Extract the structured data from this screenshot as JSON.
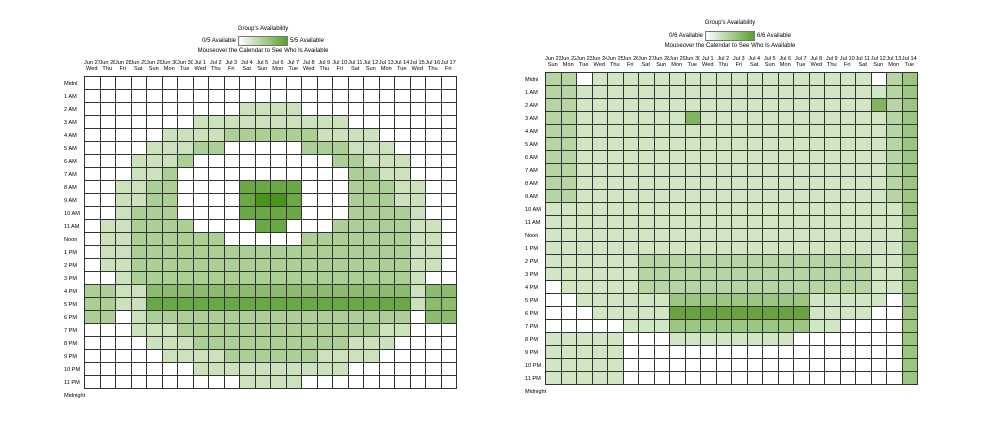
{
  "calendars": [
    {
      "title": "Group's Availability",
      "legend_min": "0/5 Available",
      "legend_max": "5/5 Available",
      "instructions": "Mouseover the Calendar to See Who Is Available",
      "dates": [
        "Jun 27",
        "Jun 28",
        "Jun 29",
        "Jun 30",
        "Jul 1",
        "Jul 2",
        "Jul 3",
        "Jul 4",
        "Jul 5",
        "Jul 6",
        "Jul 7",
        "Jul 8",
        "Jul 9",
        "Jul 10",
        "Jul 11",
        "Jul 12",
        "Jul 13",
        "Jul 14",
        "Jul 15",
        "Jul 16",
        "Jul 17",
        "Jun 28",
        "Jun 29",
        "Jun 30"
      ],
      "dates_shown": [
        "Jun 27",
        "Jun 28",
        "Jun 28",
        "Jun 29",
        "Jun 29",
        "Jun 30",
        "Jun 30",
        "Jul 1",
        "Jul 2",
        "Jul 3",
        "Jul 4",
        "Jul 5",
        "Jul 6",
        "Jul 7",
        "Jul 8",
        "Jul 9",
        "Jul 10",
        "Jul 11",
        "Jul 12",
        "Jul 13",
        "Jul 14",
        "Jul 15",
        "Jul 16",
        "Jul 17"
      ],
      "days": [
        "Wed",
        "Thu",
        "Fri",
        "Sat",
        "Sun",
        "Mon",
        "Tue",
        "Wed",
        "Thu",
        "Fri",
        "Sat",
        "Sun",
        "Mon",
        "Tue",
        "Wed",
        "Thu",
        "Fri",
        "Sat",
        "Sun",
        "Mon",
        "Tue",
        "Wed",
        "Thu",
        "Fri"
      ],
      "hours": [
        "Midni",
        "1 AM",
        "2 AM",
        "3 AM",
        "4 AM",
        "5 AM",
        "6 AM",
        "7 AM",
        "8 AM",
        "9 AM",
        "10 AM",
        "11 AM",
        "Noon",
        "1 PM",
        "2 PM",
        "3 PM",
        "4 PM",
        "5 PM",
        "6 PM",
        "7 PM",
        "8 PM",
        "9 PM",
        "10 PM",
        "11 PM",
        "Midnight"
      ],
      "max_available": 5,
      "accent": "#5aa02c"
    },
    {
      "title": "Group's Availability",
      "legend_min": "0/6 Available",
      "legend_max": "6/6 Available",
      "instructions": "Mouseover the Calendar to See Who Is Available",
      "dates_shown": [
        "Jun 23",
        "Jun 22",
        "Jun 23",
        "Jun 24",
        "Jun 25",
        "Jun 26",
        "Jun 27",
        "Jun 28",
        "Jun 29",
        "Jun 30",
        "Jul 1",
        "Jul 2",
        "Jul 3",
        "Jul 4",
        "Jul 5",
        "Jul 6",
        "Jul 7",
        "Jul 8",
        "Jul 9",
        "Jul 10",
        "Jul 11",
        "Jul 12",
        "Jul 13",
        "Jul 14"
      ],
      "days": [
        "Sun",
        "Mon",
        "Tue",
        "Wed",
        "Thu",
        "Fri",
        "Sat",
        "Sun",
        "Mon",
        "Tue",
        "Wed",
        "Thu",
        "Fri",
        "Sat",
        "Sun",
        "Mon",
        "Tue",
        "Wed",
        "Thu",
        "Fri",
        "Sat",
        "Sun",
        "Mon",
        "Tue"
      ],
      "hours": [
        "Midni",
        "1 AM",
        "2 AM",
        "3 AM",
        "4 AM",
        "5 AM",
        "6 AM",
        "7 AM",
        "8 AM",
        "9 AM",
        "10 AM",
        "11 AM",
        "Noon",
        "1 PM",
        "2 PM",
        "3 PM",
        "4 PM",
        "5 PM",
        "6 PM",
        "7 PM",
        "8 PM",
        "9 PM",
        "10 PM",
        "11 PM",
        "Midnight"
      ],
      "max_available": 6,
      "accent": "#5aa02c"
    }
  ]
}
